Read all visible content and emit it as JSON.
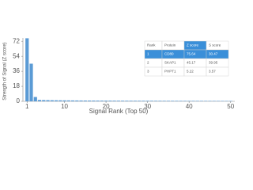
{
  "chart_data": {
    "type": "bar",
    "x_label": "Signal Rank (Top 50)",
    "y_label": "Strength of Signal (Z score)",
    "x": [
      1,
      2,
      3,
      4,
      5,
      6,
      7,
      8,
      9,
      10,
      11,
      12,
      13,
      14,
      15,
      16,
      17,
      18,
      19,
      20,
      21,
      22,
      23,
      24,
      25,
      26,
      27,
      28,
      29,
      30,
      31,
      32,
      33,
      34,
      35,
      36,
      37,
      38,
      39,
      40,
      41,
      42,
      43,
      44,
      45,
      46,
      47,
      48,
      49,
      50
    ],
    "values": [
      75.64,
      45.17,
      5.22,
      1.65,
      1.5,
      1.4,
      1.32,
      1.25,
      1.2,
      1.15,
      1.1,
      1.06,
      1.02,
      0.98,
      0.95,
      0.92,
      0.89,
      0.86,
      0.84,
      0.82,
      0.8,
      0.78,
      0.76,
      0.74,
      0.72,
      0.7,
      0.69,
      0.68,
      0.67,
      0.66,
      0.65,
      0.64,
      0.63,
      0.62,
      0.61,
      0.6,
      0.59,
      0.58,
      0.57,
      0.56,
      0.55,
      0.54,
      0.53,
      0.52,
      0.51,
      0.5,
      0.49,
      0.48,
      0.47,
      0.46
    ],
    "color": "#5b9bd5",
    "xlim": [
      0,
      51
    ],
    "xticks": [
      1,
      10,
      20,
      30,
      40,
      50
    ],
    "ylim": [
      0,
      76
    ],
    "yticks": [
      0,
      18,
      36,
      54,
      72
    ],
    "table": {
      "columns": [
        "Rank",
        "Protein",
        "Z score",
        "S score"
      ],
      "rows": [
        [
          1,
          "CD80",
          75.64,
          30.47
        ],
        [
          2,
          "SKAP1",
          45.17,
          39.95
        ],
        [
          3,
          "PHPT1",
          5.22,
          3.57
        ]
      ]
    }
  }
}
